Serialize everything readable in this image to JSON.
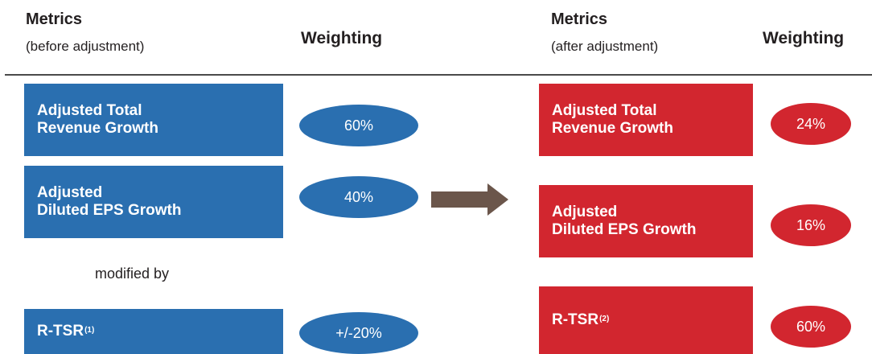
{
  "colors": {
    "before": "#2a6fb0",
    "after": "#d2262f",
    "arrow": "#6b564b"
  },
  "before": {
    "metrics_label": "Metrics",
    "metrics_sublabel": "(before adjustment)",
    "weighting_label": "Weighting",
    "rows": [
      {
        "line1": "Adjusted Total",
        "line2": "Revenue Growth",
        "weight": "60%"
      },
      {
        "line1": "Adjusted",
        "line2": "Diluted EPS Growth",
        "weight": "40%"
      }
    ],
    "modifier_text": "modified by",
    "modifier": {
      "label": "R-TSR",
      "footnote": "(1)",
      "weight": "+/-20%"
    }
  },
  "after": {
    "metrics_label": "Metrics",
    "metrics_sublabel": "(after adjustment)",
    "weighting_label": "Weighting",
    "rows": [
      {
        "line1": "Adjusted Total",
        "line2": "Revenue Growth",
        "weight": "24%"
      },
      {
        "line1": "Adjusted",
        "line2": "Diluted EPS Growth",
        "weight": "16%"
      },
      {
        "label": "R-TSR",
        "footnote": "(2)",
        "weight": "60%"
      }
    ]
  },
  "arrow_icon": "right-arrow-icon"
}
